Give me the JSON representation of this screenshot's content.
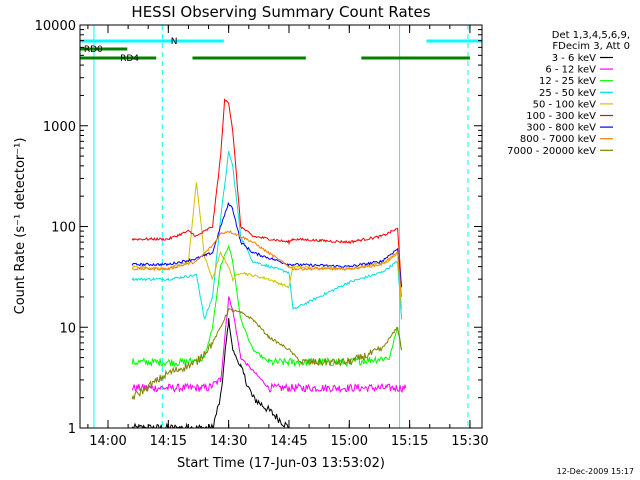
{
  "title": "HESSI Observing Summary Count Rates",
  "xlabel": "Start Time (17-Jun-03 13:53:02)",
  "ylabel": "Count Rate (s⁻¹ detector⁻¹)",
  "footer_date": "12-Dec-2009 15:17",
  "legend_header": [
    "Det 1,3,4,5,6,9,",
    "FDecim 3, Att 0"
  ],
  "colors": {
    "flag_cyan": "#00ffff",
    "flag_green": "#008000",
    "ref_line": "#00ffff"
  },
  "flags": {
    "cyan_segments": [
      [
        -0.25,
        0.48
      ],
      [
        1.32,
        1.6
      ]
    ],
    "green_segments": [
      [
        -0.25,
        0.2
      ],
      [
        0.35,
        0.82
      ],
      [
        1.05,
        1.5
      ],
      [
        1.55,
        1.6
      ]
    ],
    "green_upper_segments": [
      [
        -0.25,
        0.08
      ],
      [
        0.35,
        0.35
      ]
    ],
    "labels": {
      "rd0": "RD0",
      "rd4": "RD4",
      "n": "N"
    }
  },
  "chart_data": {
    "type": "line",
    "title": "HESSI Observing Summary Count Rates",
    "xlabel": "Start Time (17-Jun-03 13:53:02)",
    "ylabel": "Count Rate (s⁻¹ detector⁻¹)",
    "x_unit": "hours after 14:00",
    "xlim": [
      "13:53:02",
      "15:33:00"
    ],
    "ylim": [
      1,
      10000
    ],
    "yscale": "log",
    "grid": false,
    "legend_position": "right",
    "x_ticks": [
      "14:00",
      "14:15",
      "14:30",
      "14:45",
      "15:00",
      "15:15",
      "15:30"
    ],
    "y_ticks": [
      "1",
      "10",
      "100",
      "1000",
      "10000"
    ],
    "vlines_solid": [
      "13:56:30",
      "15:12:30"
    ],
    "vlines_dashed": [
      "14:13:30",
      "15:29:30"
    ],
    "series": [
      {
        "name": "3 - 6 keV",
        "color": "#000000",
        "x": [
          "14:06",
          "14:15",
          "14:22",
          "14:26",
          "14:28",
          "14:30",
          "14:31",
          "14:33",
          "14:36",
          "14:40",
          "14:45"
        ],
        "y": [
          1,
          1,
          1,
          1,
          2,
          12,
          6,
          4,
          2,
          1.5,
          1
        ]
      },
      {
        "name": "6 - 12 keV",
        "color": "#ff00ff",
        "x": [
          "14:06",
          "14:20",
          "14:25",
          "14:28",
          "14:30",
          "14:31",
          "14:33",
          "14:40",
          "14:45",
          "15:00",
          "15:10",
          "15:14"
        ],
        "y": [
          2.5,
          2.5,
          2.5,
          3,
          20,
          15,
          5,
          2.5,
          2.5,
          2.5,
          2.5,
          2.5
        ]
      },
      {
        "name": "12 - 25 keV",
        "color": "#00ff00",
        "x": [
          "14:06",
          "14:20",
          "14:24",
          "14:26",
          "14:28",
          "14:30",
          "14:31",
          "14:33",
          "14:36",
          "14:40",
          "14:45",
          "15:00",
          "15:10",
          "15:12",
          "15:13"
        ],
        "y": [
          4.5,
          4.5,
          5,
          10,
          40,
          65,
          45,
          12,
          6,
          4.5,
          4.5,
          4.5,
          5,
          10,
          6
        ]
      },
      {
        "name": "25 - 50 keV",
        "color": "#00e0e0",
        "x": [
          "14:06",
          "14:15",
          "14:22",
          "14:24",
          "14:26",
          "14:28",
          "14:30",
          "14:31",
          "14:33",
          "14:36",
          "14:42",
          "14:45",
          "14:46",
          "15:00",
          "15:08",
          "15:12",
          "15:13"
        ],
        "y": [
          30,
          30,
          33,
          12,
          20,
          120,
          550,
          400,
          80,
          45,
          38,
          35,
          15,
          28,
          35,
          45,
          12
        ]
      },
      {
        "name": "50 - 100 keV",
        "color": "#d0c000",
        "x": [
          "14:06",
          "14:15",
          "14:20",
          "14:22",
          "14:24",
          "14:26",
          "14:28",
          "14:30",
          "14:31",
          "14:33",
          "14:40",
          "14:45",
          "14:46",
          "15:00",
          "15:10",
          "15:12",
          "15:13"
        ],
        "y": [
          40,
          38,
          45,
          280,
          50,
          30,
          55,
          40,
          30,
          35,
          30,
          25,
          40,
          38,
          45,
          55,
          15
        ]
      },
      {
        "name": "100 - 300 keV",
        "color": "#ff0000",
        "x": [
          "14:06",
          "14:15",
          "14:20",
          "14:22",
          "14:26",
          "14:28",
          "14:29",
          "14:30",
          "14:31",
          "14:33",
          "14:36",
          "14:45",
          "14:46",
          "15:00",
          "15:08",
          "15:12",
          "15:13"
        ],
        "y": [
          75,
          75,
          90,
          80,
          100,
          500,
          1800,
          1700,
          900,
          100,
          80,
          70,
          75,
          70,
          80,
          95,
          25
        ]
      },
      {
        "name": "300 - 800 keV",
        "color": "#0000ff",
        "x": [
          "14:06",
          "14:15",
          "14:22",
          "14:26",
          "14:28",
          "14:30",
          "14:31",
          "14:33",
          "14:36",
          "14:45",
          "14:46",
          "15:00",
          "15:08",
          "15:12",
          "15:13"
        ],
        "y": [
          42,
          42,
          48,
          55,
          100,
          170,
          150,
          70,
          55,
          42,
          42,
          40,
          45,
          60,
          25
        ]
      },
      {
        "name": "800 - 7000 keV",
        "color": "#ff8000",
        "x": [
          "14:06",
          "14:15",
          "14:22",
          "14:26",
          "14:28",
          "14:30",
          "14:33",
          "14:36",
          "14:45",
          "14:46",
          "15:00",
          "15:08",
          "15:12",
          "15:13"
        ],
        "y": [
          38,
          38,
          45,
          65,
          85,
          90,
          80,
          70,
          40,
          38,
          38,
          42,
          55,
          20
        ]
      },
      {
        "name": "7000 - 20000 keV",
        "color": "#808000",
        "x": [
          "14:06",
          "14:15",
          "14:22",
          "14:26",
          "14:28",
          "14:30",
          "14:33",
          "14:36",
          "14:40",
          "14:45",
          "14:48",
          "15:00",
          "15:08",
          "15:12",
          "15:13"
        ],
        "y": [
          2,
          3.5,
          4.5,
          7,
          10,
          15,
          14,
          12,
          8,
          6,
          4.5,
          4.5,
          6,
          10,
          6
        ]
      }
    ]
  }
}
